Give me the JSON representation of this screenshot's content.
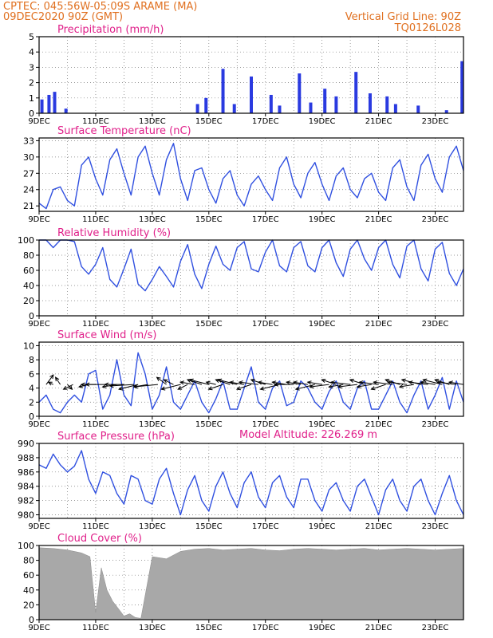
{
  "header": {
    "line1": "CPTEC:  045:56W-05:09S  ARAME (MA)",
    "line2": "09DEC2020 90Z (GMT)",
    "grid_note": "Vertical Grid Line: 90Z",
    "model": "TQ0126L028",
    "altitude": "Model Altitude: 226.269 m"
  },
  "colors": {
    "header": "#e07020",
    "title": "#e0208a",
    "line": "#3050e0",
    "bar": "#2a3ae0",
    "cloud": "#a8a8a8"
  },
  "x_ticks": [
    "9DEC",
    "11DEC",
    "13DEC",
    "15DEC",
    "17DEC",
    "19DEC",
    "21DEC",
    "23DEC"
  ],
  "chart_data": [
    {
      "type": "bar",
      "title": "Precipitation (mm/h)",
      "ylim": [
        0,
        5
      ],
      "yticks": [
        0,
        1,
        2,
        3,
        4,
        5
      ],
      "x_days": [
        0.1,
        0.35,
        0.55,
        0.95,
        5.6,
        5.9,
        6.5,
        6.9,
        7.5,
        8.2,
        8.5,
        9.2,
        9.6,
        10.1,
        10.5,
        11.2,
        11.7,
        12.3,
        12.6,
        13.4,
        14.4,
        14.95
      ],
      "values": [
        0.9,
        1.2,
        1.4,
        0.3,
        0.6,
        1.0,
        2.9,
        0.6,
        2.4,
        1.2,
        0.5,
        2.6,
        0.7,
        1.6,
        1.1,
        2.7,
        1.3,
        1.1,
        0.6,
        0.5,
        0.2,
        3.4
      ]
    },
    {
      "type": "line",
      "title": "Surface Temperature (nC)",
      "ylim": [
        20,
        33.5
      ],
      "yticks": [
        21,
        24,
        27,
        30,
        33
      ],
      "x_days": [
        0,
        0.25,
        0.5,
        0.75,
        1.0,
        1.25,
        1.5,
        1.75,
        2.0,
        2.25,
        2.5,
        2.75,
        3.0,
        3.25,
        3.5,
        3.75,
        4.0,
        4.25,
        4.5,
        4.75,
        5.0,
        5.25,
        5.5,
        5.75,
        6.0,
        6.25,
        6.5,
        6.75,
        7.0,
        7.25,
        7.5,
        7.75,
        8.0,
        8.25,
        8.5,
        8.75,
        9.0,
        9.25,
        9.5,
        9.75,
        10.0,
        10.25,
        10.5,
        10.75,
        11.0,
        11.25,
        11.5,
        11.75,
        12.0,
        12.25,
        12.5,
        12.75,
        13.0,
        13.25,
        13.5,
        13.75,
        14.0,
        14.25,
        14.5,
        14.75,
        15.0
      ],
      "values": [
        21.5,
        20.5,
        24,
        24.5,
        22,
        21,
        28.5,
        30,
        26,
        23,
        29.5,
        31.5,
        27,
        23,
        30,
        32,
        27,
        23,
        29.5,
        32.5,
        26,
        22,
        27.5,
        28,
        24,
        21.5,
        26,
        27.5,
        23,
        21,
        25,
        26.5,
        24,
        22,
        28,
        30,
        25,
        22.5,
        27,
        29,
        25,
        22,
        26.5,
        28,
        24,
        22.5,
        26,
        27,
        23.5,
        22,
        28,
        29.5,
        24.5,
        22,
        28.5,
        30.5,
        26,
        23.5,
        30,
        32,
        27.5
      ]
    },
    {
      "type": "line",
      "title": "Relative Humidity (%)",
      "ylim": [
        0,
        100
      ],
      "yticks": [
        0,
        20,
        40,
        60,
        80,
        100
      ],
      "x_days": [
        0,
        0.25,
        0.5,
        0.75,
        1.0,
        1.25,
        1.5,
        1.75,
        2.0,
        2.25,
        2.5,
        2.75,
        3.0,
        3.25,
        3.5,
        3.75,
        4.0,
        4.25,
        4.5,
        4.75,
        5.0,
        5.25,
        5.5,
        5.75,
        6.0,
        6.25,
        6.5,
        6.75,
        7.0,
        7.25,
        7.5,
        7.75,
        8.0,
        8.25,
        8.5,
        8.75,
        9.0,
        9.25,
        9.5,
        9.75,
        10.0,
        10.25,
        10.5,
        10.75,
        11.0,
        11.25,
        11.5,
        11.75,
        12.0,
        12.25,
        12.5,
        12.75,
        13.0,
        13.25,
        13.5,
        13.75,
        14.0,
        14.25,
        14.5,
        14.75,
        15.0
      ],
      "values": [
        100,
        100,
        90,
        100,
        100,
        98,
        65,
        55,
        68,
        90,
        48,
        38,
        62,
        88,
        42,
        33,
        48,
        65,
        52,
        38,
        72,
        94,
        55,
        36,
        68,
        92,
        68,
        60,
        90,
        98,
        62,
        58,
        84,
        100,
        66,
        58,
        90,
        98,
        66,
        58,
        90,
        100,
        70,
        52,
        88,
        100,
        75,
        60,
        90,
        100,
        68,
        50,
        92,
        100,
        62,
        46,
        88,
        97,
        56,
        40,
        62
      ]
    },
    {
      "type": "line",
      "title": "Surface Wind (m/s)",
      "ylim": [
        0,
        10.5
      ],
      "yticks": [
        0,
        2,
        4,
        6,
        8,
        10
      ],
      "x_days": [
        0,
        0.25,
        0.5,
        0.75,
        1.0,
        1.25,
        1.5,
        1.75,
        2.0,
        2.25,
        2.5,
        2.75,
        3.0,
        3.25,
        3.5,
        3.75,
        4.0,
        4.25,
        4.5,
        4.75,
        5.0,
        5.25,
        5.5,
        5.75,
        6.0,
        6.25,
        6.5,
        6.75,
        7.0,
        7.25,
        7.5,
        7.75,
        8.0,
        8.25,
        8.5,
        8.75,
        9.0,
        9.25,
        9.5,
        9.75,
        10.0,
        10.25,
        10.5,
        10.75,
        11.0,
        11.25,
        11.5,
        11.75,
        12.0,
        12.25,
        12.5,
        12.75,
        13.0,
        13.25,
        13.5,
        13.75,
        14.0,
        14.25,
        14.5,
        14.75,
        15.0
      ],
      "values": [
        2,
        3,
        1,
        0.5,
        2,
        3,
        2,
        6,
        6.5,
        1,
        3,
        8,
        3,
        1.5,
        9,
        6,
        1,
        3,
        7,
        2,
        1,
        3,
        5,
        2,
        0.5,
        2.5,
        5,
        1,
        1,
        4,
        7,
        2,
        1,
        4,
        5,
        1.5,
        2,
        5,
        4,
        2,
        1,
        3.5,
        5,
        2,
        1,
        4,
        5,
        1,
        1,
        3,
        5,
        2,
        0.5,
        3,
        5,
        1,
        3,
        5.5,
        1,
        5,
        2
      ],
      "arrows": {
        "x_days": [
          0.25,
          0.5,
          0.75,
          1.0,
          1.2,
          1.75,
          2.0,
          2.5,
          2.75,
          3.0,
          3.35,
          3.5,
          3.85,
          4.2,
          4.5,
          4.75,
          5.0,
          5.25,
          5.5,
          5.75,
          6.0,
          6.25,
          6.5,
          6.75,
          7.0,
          7.25,
          7.5,
          7.75,
          8.0,
          8.25,
          8.5,
          8.75,
          9.0,
          9.25,
          9.5,
          9.75,
          10.0,
          10.25,
          10.5,
          10.75,
          11.0,
          11.25,
          11.5,
          11.75,
          12.0,
          12.25,
          12.5,
          12.75,
          13.0,
          13.25,
          13.5,
          13.75,
          14.0,
          14.25,
          14.5,
          14.75,
          15.0
        ],
        "y": [
          4.5,
          4.5,
          4.5,
          4.5,
          4.5,
          4.5,
          4.5,
          4.5,
          4.5,
          4.5,
          4.5,
          4.5,
          4.5,
          4.5,
          4.5,
          4.5,
          4.5,
          4.5,
          4.5,
          4.5,
          4.5,
          4.5,
          4.5,
          4.5,
          4.5,
          4.5,
          4.5,
          4.5,
          4.5,
          4.5,
          4.5,
          4.5,
          4.5,
          4.5,
          4.5,
          4.5,
          4.5,
          4.5,
          4.5,
          4.5,
          4.5,
          4.5,
          4.5,
          4.5,
          4.5,
          4.5,
          4.5,
          4.5,
          4.5,
          4.5,
          4.5,
          4.5,
          4.5,
          4.5,
          4.5,
          4.5,
          4.5
        ],
        "dx": [
          1.5,
          -1,
          -1,
          1,
          -2,
          -2,
          -3,
          -5,
          -3,
          -4,
          -5,
          -4,
          -3,
          -5,
          -2,
          -2,
          -4,
          -2,
          -3,
          -3,
          -4,
          -2,
          -3,
          -3,
          -4,
          -3,
          -3,
          -4,
          -3,
          -3,
          -4,
          -3,
          -4,
          -3,
          -3,
          -4,
          -3,
          -4,
          -3,
          -3,
          -4,
          -4,
          -3,
          -3,
          -4,
          -3,
          -4,
          -3,
          -4,
          -3,
          -4,
          -4,
          -3,
          -4,
          -3,
          -4,
          -3
        ],
        "dy": [
          2,
          0.5,
          1.5,
          -1,
          -1,
          -0.5,
          0,
          0,
          -0.5,
          0,
          -0.3,
          -1,
          -0.5,
          -0.5,
          1.5,
          1,
          -1,
          -1,
          0.5,
          1,
          1,
          0.5,
          -1,
          1,
          1,
          0.5,
          -1,
          0.5,
          1,
          0.5,
          -1,
          0.5,
          0,
          0.5,
          0.5,
          -1,
          0.5,
          -0.5,
          1,
          -0.5,
          0.5,
          -0.5,
          1,
          -0.5,
          0.5,
          -1,
          0.5,
          1,
          0.5,
          -0.5,
          1,
          0.5,
          0.5,
          1,
          1,
          0.5,
          0.5
        ]
      }
    },
    {
      "type": "line",
      "title": "Surface Pressure (hPa)",
      "ylim": [
        979.5,
        990
      ],
      "yticks": [
        980,
        982,
        984,
        986,
        988,
        990
      ],
      "x_days": [
        0,
        0.25,
        0.5,
        0.75,
        1.0,
        1.25,
        1.5,
        1.75,
        2.0,
        2.25,
        2.5,
        2.75,
        3.0,
        3.25,
        3.5,
        3.75,
        4.0,
        4.25,
        4.5,
        4.75,
        5.0,
        5.25,
        5.5,
        5.75,
        6.0,
        6.25,
        6.5,
        6.75,
        7.0,
        7.25,
        7.5,
        7.75,
        8.0,
        8.25,
        8.5,
        8.75,
        9.0,
        9.25,
        9.5,
        9.75,
        10.0,
        10.25,
        10.5,
        10.75,
        11.0,
        11.25,
        11.5,
        11.75,
        12.0,
        12.25,
        12.5,
        12.75,
        13.0,
        13.25,
        13.5,
        13.75,
        14.0,
        14.25,
        14.5,
        14.75,
        15.0
      ],
      "values": [
        987,
        986.5,
        988.5,
        987,
        986,
        986.8,
        989,
        985,
        983,
        986,
        985.5,
        983,
        981.5,
        985.5,
        985,
        982,
        981.5,
        985,
        986.5,
        983,
        980,
        983.5,
        985.5,
        982,
        980.5,
        984,
        986,
        983,
        981,
        984.5,
        986,
        982.5,
        981,
        984.5,
        985.5,
        982.5,
        981,
        985,
        985,
        982,
        980.5,
        983.5,
        984.5,
        982,
        980.5,
        984,
        985,
        982.5,
        980,
        983.5,
        985,
        982,
        980.5,
        984,
        985,
        982,
        980,
        983,
        985.5,
        982,
        980
      ]
    },
    {
      "type": "area",
      "title": "Cloud Cover (%)",
      "ylim": [
        0,
        100
      ],
      "yticks": [
        0,
        20,
        40,
        60,
        80,
        100
      ],
      "x_days": [
        0,
        0.5,
        1.0,
        1.5,
        1.8,
        2.0,
        2.2,
        2.4,
        2.6,
        2.8,
        3.0,
        3.2,
        3.4,
        3.55,
        3.6,
        4.0,
        4.5,
        5.0,
        5.5,
        6.0,
        6.5,
        7.0,
        7.5,
        8.0,
        8.5,
        9.0,
        9.5,
        10.0,
        10.5,
        11.0,
        11.5,
        12.0,
        12.5,
        13.0,
        13.5,
        14.0,
        14.5,
        15.0
      ],
      "values": [
        97,
        96,
        94,
        90,
        85,
        10,
        70,
        40,
        25,
        15,
        5,
        8,
        3,
        2,
        2,
        85,
        82,
        92,
        95,
        96,
        94,
        95,
        96,
        94,
        93,
        95,
        96,
        95,
        94,
        95,
        96,
        94,
        95,
        96,
        95,
        94,
        95,
        96
      ]
    }
  ]
}
